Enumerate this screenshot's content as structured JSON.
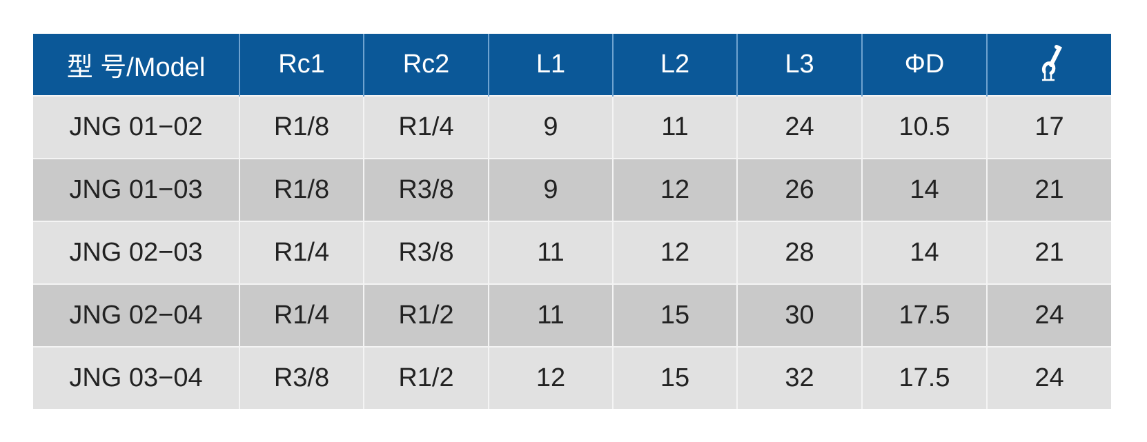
{
  "colors": {
    "header": "#0b5898",
    "row_light": "#e1e1e1",
    "row_dark": "#c9c9c9"
  },
  "headers": [
    "型 号/Model",
    "Rc1",
    "Rc2",
    "L1",
    "L2",
    "L3",
    "ΦD"
  ],
  "last_header_icon": "wrench-icon",
  "rows": [
    [
      "JNG 01−02",
      "R1/8",
      "R1/4",
      "9",
      "11",
      "24",
      "10.5",
      "17"
    ],
    [
      "JNG 01−03",
      "R1/8",
      "R3/8",
      "9",
      "12",
      "26",
      "14",
      "21"
    ],
    [
      "JNG 02−03",
      "R1/4",
      "R3/8",
      "11",
      "12",
      "28",
      "14",
      "21"
    ],
    [
      "JNG 02−04",
      "R1/4",
      "R1/2",
      "11",
      "15",
      "30",
      "17.5",
      "24"
    ],
    [
      "JNG 03−04",
      "R3/8",
      "R1/2",
      "12",
      "15",
      "32",
      "17.5",
      "24"
    ]
  ]
}
